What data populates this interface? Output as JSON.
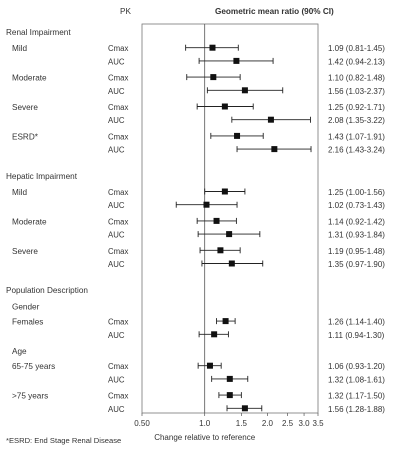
{
  "header": {
    "pk": "PK",
    "ratio": "Geometric mean ratio (90% CI)"
  },
  "footnote": "*ESRD: End Stage Renal Disease",
  "chart_data": {
    "type": "forest",
    "xlabel": "Change relative to reference",
    "xscale": "log",
    "xlim": [
      0.5,
      3.5
    ],
    "xticks": [
      "0.50",
      "1.0",
      "1.5",
      "2.0",
      "2.5",
      "3.0",
      "3.5"
    ],
    "reference_line": 1.0,
    "sections": [
      {
        "title": "Renal Impairment",
        "groups": [
          {
            "label": "Mild",
            "rows": [
              {
                "pk": "Cmax",
                "est": 1.09,
                "lo": 0.81,
                "hi": 1.45,
                "text": "1.09 (0.81-1.45)"
              },
              {
                "pk": "AUC",
                "est": 1.42,
                "lo": 0.94,
                "hi": 2.13,
                "text": "1.42 (0.94-2.13)"
              }
            ]
          },
          {
            "label": "Moderate",
            "rows": [
              {
                "pk": "Cmax",
                "est": 1.1,
                "lo": 0.82,
                "hi": 1.48,
                "text": "1.10 (0.82-1.48)"
              },
              {
                "pk": "AUC",
                "est": 1.56,
                "lo": 1.03,
                "hi": 2.37,
                "text": "1.56 (1.03-2.37)"
              }
            ]
          },
          {
            "label": "Severe",
            "rows": [
              {
                "pk": "Cmax",
                "est": 1.25,
                "lo": 0.92,
                "hi": 1.71,
                "text": "1.25 (0.92-1.71)"
              },
              {
                "pk": "AUC",
                "est": 2.08,
                "lo": 1.35,
                "hi": 3.22,
                "text": "2.08 (1.35-3.22)"
              }
            ]
          },
          {
            "label": "ESRD*",
            "rows": [
              {
                "pk": "Cmax",
                "est": 1.43,
                "lo": 1.07,
                "hi": 1.91,
                "text": "1.43 (1.07-1.91)"
              },
              {
                "pk": "AUC",
                "est": 2.16,
                "lo": 1.43,
                "hi": 3.24,
                "text": "2.16 (1.43-3.24)"
              }
            ]
          }
        ]
      },
      {
        "title": "Hepatic Impairment",
        "groups": [
          {
            "label": "Mild",
            "rows": [
              {
                "pk": "Cmax",
                "est": 1.25,
                "lo": 1.0,
                "hi": 1.56,
                "text": "1.25 (1.00-1.56)"
              },
              {
                "pk": "AUC",
                "est": 1.02,
                "lo": 0.73,
                "hi": 1.43,
                "text": "1.02 (0.73-1.43)"
              }
            ]
          },
          {
            "label": "Moderate",
            "rows": [
              {
                "pk": "Cmax",
                "est": 1.14,
                "lo": 0.92,
                "hi": 1.42,
                "text": "1.14 (0.92-1.42)"
              },
              {
                "pk": "AUC",
                "est": 1.31,
                "lo": 0.93,
                "hi": 1.84,
                "text": "1.31 (0.93-1.84)"
              }
            ]
          },
          {
            "label": "Severe",
            "rows": [
              {
                "pk": "Cmax",
                "est": 1.19,
                "lo": 0.95,
                "hi": 1.48,
                "text": "1.19 (0.95-1.48)"
              },
              {
                "pk": "AUC",
                "est": 1.35,
                "lo": 0.97,
                "hi": 1.9,
                "text": "1.35 (0.97-1.90)"
              }
            ]
          }
        ]
      },
      {
        "title": "Population Description",
        "groups": [
          {
            "heading": "Gender"
          },
          {
            "label": "Females",
            "rows": [
              {
                "pk": "Cmax",
                "est": 1.26,
                "lo": 1.14,
                "hi": 1.4,
                "text": "1.26 (1.14-1.40)"
              },
              {
                "pk": "AUC",
                "est": 1.11,
                "lo": 0.94,
                "hi": 1.3,
                "text": "1.11 (0.94-1.30)"
              }
            ]
          },
          {
            "heading": "Age"
          },
          {
            "label": "65-75 years",
            "rows": [
              {
                "pk": "Cmax",
                "est": 1.06,
                "lo": 0.93,
                "hi": 1.2,
                "text": "1.06 (0.93-1.20)"
              },
              {
                "pk": "AUC",
                "est": 1.32,
                "lo": 1.08,
                "hi": 1.61,
                "text": "1.32 (1.08-1.61)"
              }
            ]
          },
          {
            "label": ">75 years",
            "rows": [
              {
                "pk": "Cmax",
                "est": 1.32,
                "lo": 1.17,
                "hi": 1.5,
                "text": "1.32 (1.17-1.50)"
              },
              {
                "pk": "AUC",
                "est": 1.56,
                "lo": 1.28,
                "hi": 1.88,
                "text": "1.56 (1.28-1.88)"
              }
            ]
          }
        ]
      }
    ]
  }
}
